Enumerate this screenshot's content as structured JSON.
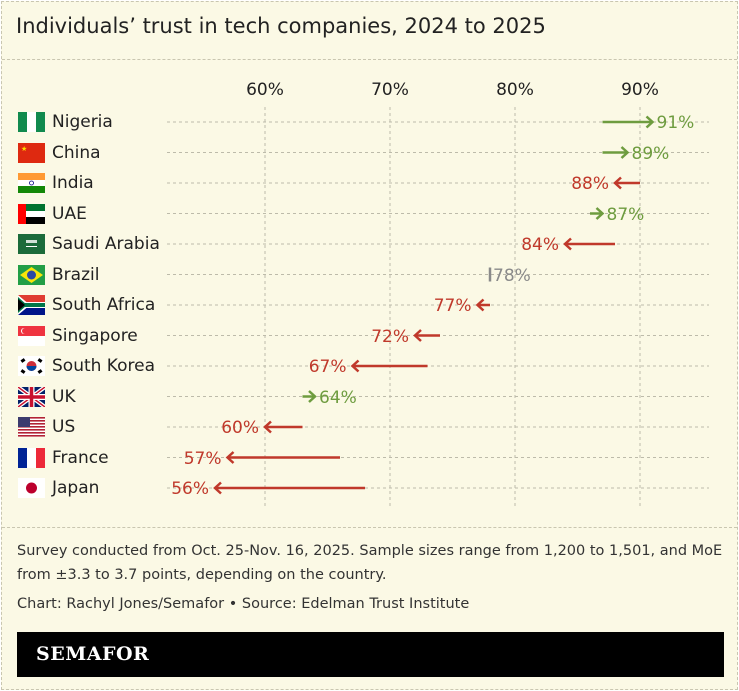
{
  "title": "Individuals’ trust in tech companies, 2024 to 2025",
  "chart_data": {
    "type": "arrow-dot",
    "title": "Individuals’ trust in tech companies, 2024 to 2025",
    "xlim": [
      50,
      95
    ],
    "xticks": [
      60,
      70,
      80,
      90
    ],
    "tick_labels": [
      "60%",
      "70%",
      "80%",
      "90%"
    ],
    "grid": true,
    "colors": {
      "increase": "#6e9c3f",
      "decrease": "#c0392b",
      "unchanged": "#8a8a8a"
    },
    "rows": [
      {
        "country": "Nigeria",
        "flag": "nigeria-flag",
        "y2024": 87,
        "y2025": 91,
        "label": "91%"
      },
      {
        "country": "China",
        "flag": "china-flag",
        "y2024": 87,
        "y2025": 89,
        "label": "89%"
      },
      {
        "country": "India",
        "flag": "india-flag",
        "y2024": 90,
        "y2025": 88,
        "label": "88%"
      },
      {
        "country": "UAE",
        "flag": "uae-flag",
        "y2024": 86,
        "y2025": 87,
        "label": "87%"
      },
      {
        "country": "Saudi Arabia",
        "flag": "saudi-arabia-flag",
        "y2024": 88,
        "y2025": 84,
        "label": "84%"
      },
      {
        "country": "Brazil",
        "flag": "brazil-flag",
        "y2024": 78,
        "y2025": 78,
        "label": "78%"
      },
      {
        "country": "South Africa",
        "flag": "south-africa-flag",
        "y2024": 78,
        "y2025": 77,
        "label": "77%"
      },
      {
        "country": "Singapore",
        "flag": "singapore-flag",
        "y2024": 74,
        "y2025": 72,
        "label": "72%"
      },
      {
        "country": "South Korea",
        "flag": "south-korea-flag",
        "y2024": 73,
        "y2025": 67,
        "label": "67%"
      },
      {
        "country": "UK",
        "flag": "uk-flag",
        "y2024": 63,
        "y2025": 64,
        "label": "64%"
      },
      {
        "country": "US",
        "flag": "us-flag",
        "y2024": 63,
        "y2025": 60,
        "label": "60%"
      },
      {
        "country": "France",
        "flag": "france-flag",
        "y2024": 66,
        "y2025": 57,
        "label": "57%"
      },
      {
        "country": "Japan",
        "flag": "japan-flag",
        "y2024": 68,
        "y2025": 56,
        "label": "56%"
      }
    ]
  },
  "footer": {
    "note": "Survey conducted from Oct. 25-Nov. 16, 2025. Sample sizes range from 1,200 to 1,501, and MoE from ±3.3 to 3.7 points, depending on the country.",
    "credit": "Chart: Rachyl Jones/Semafor • Source: Edelman Trust Institute",
    "brand": "SEMAFOR"
  }
}
